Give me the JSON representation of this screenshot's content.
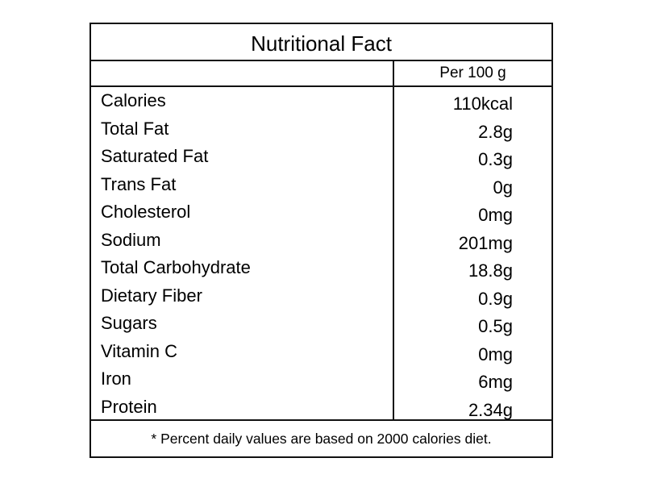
{
  "title": "Nutritional Fact",
  "column_header": "Per 100 g",
  "rows": [
    [
      "Calories",
      "110kcal"
    ],
    [
      "Total Fat",
      "2.8g"
    ],
    [
      "Saturated Fat",
      "0.3g"
    ],
    [
      "Trans Fat",
      "0g"
    ],
    [
      "Cholesterol",
      "0mg"
    ],
    [
      "Sodium",
      "201mg"
    ],
    [
      "Total Carbohydrate",
      "18.8g"
    ],
    [
      "Dietary Fiber",
      "0.9g"
    ],
    [
      "Sugars",
      "0.5g"
    ],
    [
      "Vitamin C",
      "0mg"
    ],
    [
      "Iron",
      "6mg"
    ],
    [
      "Protein",
      "2.34g"
    ]
  ],
  "footnote": "* Percent daily values are based on 2000 calories diet."
}
